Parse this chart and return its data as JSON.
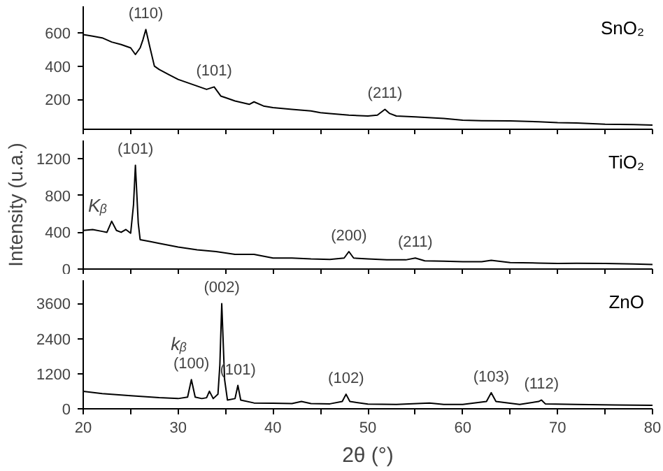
{
  "chart_data": [
    {
      "type": "line",
      "xlim": [
        20,
        80
      ],
      "xticks": [
        {
          "value": 20,
          "label": null
        },
        {
          "value": 25,
          "label": null
        },
        {
          "value": 30,
          "label": null
        },
        {
          "value": 35,
          "label": null
        },
        {
          "value": 40,
          "label": null
        },
        {
          "value": 45,
          "label": null
        },
        {
          "value": 50,
          "label": null
        },
        {
          "value": 55,
          "label": null
        },
        {
          "value": 60,
          "label": null
        },
        {
          "value": 65,
          "label": null
        },
        {
          "value": 70,
          "label": null
        },
        {
          "value": 75,
          "label": null
        },
        {
          "value": 80,
          "label": null
        }
      ],
      "ylim": [
        20,
        760
      ],
      "yticks": [
        200,
        400,
        600
      ],
      "tick_labels": "y",
      "series": [
        {
          "name": "SnO₂",
          "color": "#000000",
          "x": [
            20,
            21,
            22,
            23,
            24,
            25,
            25.5,
            26,
            26.3,
            26.6,
            27,
            27.5,
            28,
            29,
            30,
            31,
            32,
            33,
            33.8,
            34.5,
            35,
            36,
            37.5,
            38,
            39,
            40,
            42,
            44,
            45,
            46,
            48,
            50,
            51,
            51.8,
            52.3,
            53,
            55,
            58,
            60,
            62,
            65,
            68,
            70,
            72,
            75,
            78,
            80
          ],
          "values": [
            590,
            580,
            570,
            545,
            530,
            510,
            470,
            510,
            560,
            620,
            520,
            400,
            380,
            350,
            320,
            300,
            280,
            260,
            275,
            220,
            210,
            190,
            170,
            185,
            160,
            150,
            140,
            130,
            120,
            115,
            105,
            100,
            105,
            140,
            115,
            100,
            95,
            85,
            75,
            72,
            70,
            65,
            60,
            58,
            50,
            48,
            45
          ]
        }
      ],
      "annotations": [
        {
          "text": "(110)",
          "x": 26.6,
          "y": 620
        },
        {
          "text": "(101)",
          "x": 33.8,
          "y": 275
        },
        {
          "text": "(211)",
          "x": 51.8,
          "y": 140
        }
      ]
    },
    {
      "type": "line",
      "xlim": [
        20,
        80
      ],
      "xticks": [
        {
          "value": 20,
          "label": null
        },
        {
          "value": 25,
          "label": null
        },
        {
          "value": 30,
          "label": null
        },
        {
          "value": 35,
          "label": null
        },
        {
          "value": 40,
          "label": null
        },
        {
          "value": 45,
          "label": null
        },
        {
          "value": 50,
          "label": null
        },
        {
          "value": 55,
          "label": null
        },
        {
          "value": 60,
          "label": null
        },
        {
          "value": 65,
          "label": null
        },
        {
          "value": 70,
          "label": null
        },
        {
          "value": 75,
          "label": null
        },
        {
          "value": 80,
          "label": null
        }
      ],
      "ylim": [
        0,
        1400
      ],
      "yticks": [
        0,
        400,
        800,
        1200
      ],
      "tick_labels": "y",
      "ylabel": "Intensity (u.a.)",
      "series": [
        {
          "name": "TiO₂",
          "color": "#000000",
          "x": [
            20,
            21,
            22,
            22.5,
            23,
            23.5,
            24,
            24.5,
            25,
            25.3,
            25.5,
            25.8,
            26,
            27,
            28,
            30,
            32,
            34,
            36,
            38,
            40,
            42,
            44,
            46,
            47.5,
            48,
            48.5,
            50,
            52,
            54,
            55,
            56,
            58,
            60,
            62,
            63,
            65,
            68,
            70,
            72,
            75,
            78,
            80
          ],
          "values": [
            420,
            430,
            410,
            400,
            520,
            420,
            400,
            430,
            390,
            700,
            1130,
            500,
            320,
            300,
            280,
            240,
            210,
            190,
            160,
            160,
            120,
            120,
            110,
            105,
            120,
            190,
            120,
            110,
            100,
            100,
            120,
            90,
            85,
            80,
            80,
            95,
            70,
            65,
            60,
            62,
            60,
            55,
            50
          ]
        }
      ],
      "annotations": [
        {
          "text": "Kᵦ",
          "x": 23,
          "y": 520
        },
        {
          "text": "(101)",
          "x": 25.5,
          "y": 1130
        },
        {
          "text": "(200)",
          "x": 48,
          "y": 190
        },
        {
          "text": "(211)",
          "x": 55,
          "y": 120
        }
      ]
    },
    {
      "type": "line",
      "xlim": [
        20,
        80
      ],
      "xticks": [
        20,
        {
          "value": 25,
          "label": null
        },
        30,
        {
          "value": 35,
          "label": null
        },
        40,
        {
          "value": 45,
          "label": null
        },
        50,
        {
          "value": 55,
          "label": null
        },
        60,
        {
          "value": 65,
          "label": null
        },
        70,
        {
          "value": 75,
          "label": null
        },
        80
      ],
      "ylim": [
        0,
        4400
      ],
      "yticks": [
        0,
        1200,
        2400,
        3600
      ],
      "xlabel": "2θ (°)",
      "series": [
        {
          "name": "ZnO",
          "color": "#000000",
          "x": [
            20,
            22,
            25,
            28,
            30,
            31,
            31.4,
            31.8,
            32.5,
            33,
            33.3,
            33.7,
            34.2,
            34.4,
            34.6,
            34.9,
            35.2,
            36,
            36.3,
            36.6,
            38,
            40,
            42,
            43,
            44,
            46,
            47.3,
            47.7,
            48.1,
            50,
            53,
            56.5,
            58,
            60,
            62.5,
            63,
            63.5,
            66,
            68,
            68.3,
            68.7,
            72,
            76,
            80
          ],
          "values": [
            600,
            520,
            450,
            380,
            350,
            400,
            1000,
            400,
            350,
            380,
            600,
            350,
            500,
            1500,
            3600,
            1000,
            300,
            350,
            800,
            300,
            200,
            190,
            180,
            250,
            180,
            170,
            250,
            500,
            250,
            160,
            150,
            200,
            150,
            150,
            250,
            550,
            250,
            150,
            250,
            300,
            170,
            150,
            130,
            120
          ]
        }
      ],
      "annotations": [
        {
          "text": "kᵦ",
          "x": 31.4,
          "y": 1000
        },
        {
          "text": "(100)",
          "x": 31.4,
          "y": 1000
        },
        {
          "text": "(002)",
          "x": 34.6,
          "y": 3600
        },
        {
          "text": "(101)",
          "x": 36.3,
          "y": 800
        },
        {
          "text": "(102)",
          "x": 47.7,
          "y": 500
        },
        {
          "text": "(103)",
          "x": 63,
          "y": 550
        },
        {
          "text": "(112)",
          "x": 68.3,
          "y": 300
        }
      ]
    }
  ]
}
